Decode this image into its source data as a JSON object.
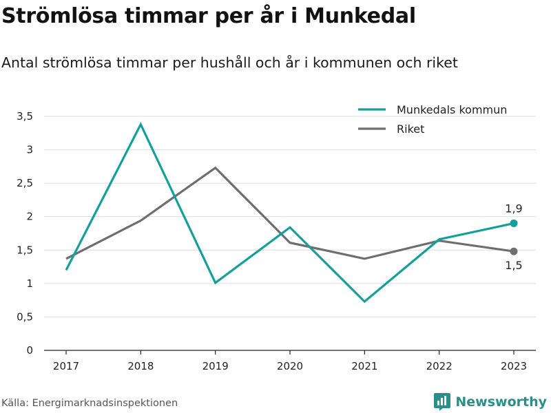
{
  "title": "Strömlösa timmar per år i Munkedal",
  "subtitle": "Antal strömlösa timmar per hushåll och år i kommunen och riket",
  "source": "Källa: Energimarknadsinspektionen",
  "brand": {
    "name": "Newsworthy",
    "icon": "bar-chart-logo-icon",
    "color": "#2a8f88"
  },
  "chart_data": {
    "type": "line",
    "x": [
      "2017",
      "2018",
      "2019",
      "2020",
      "2021",
      "2022",
      "2023"
    ],
    "ylim": [
      0,
      3.5
    ],
    "yticks": [
      0,
      0.5,
      1,
      1.5,
      2,
      2.5,
      3,
      3.5
    ],
    "ytick_labels": [
      "0",
      "0,5",
      "1",
      "1,5",
      "2",
      "2,5",
      "3",
      "3,5"
    ],
    "grid": true,
    "legend_position": "top-right",
    "series": [
      {
        "name": "Munkedals kommun",
        "color": "#14a09a",
        "values": [
          1.2,
          3.38,
          1.01,
          1.84,
          0.73,
          1.66,
          1.9
        ],
        "end_label": "1,9"
      },
      {
        "name": "Riket",
        "color": "#6e6e70",
        "values": [
          1.37,
          1.94,
          2.73,
          1.61,
          1.37,
          1.64,
          1.48
        ],
        "end_label": "1,5"
      }
    ]
  }
}
